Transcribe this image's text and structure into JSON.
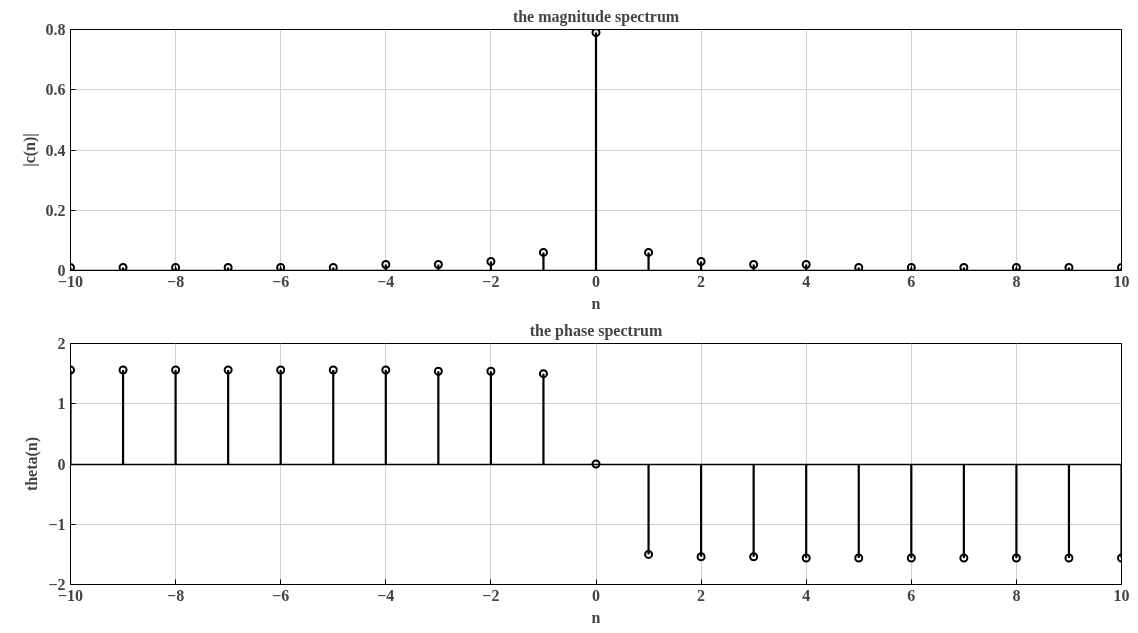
{
  "chart_data": [
    {
      "type": "lollipop",
      "title": "the magnitude spectrum",
      "xlabel": "n",
      "ylabel": "|c(n)|",
      "x": [
        -10,
        -9,
        -8,
        -7,
        -6,
        -5,
        -4,
        -3,
        -2,
        -1,
        0,
        1,
        2,
        3,
        4,
        5,
        6,
        7,
        8,
        9,
        10
      ],
      "values": [
        0.01,
        0.01,
        0.01,
        0.01,
        0.01,
        0.01,
        0.02,
        0.02,
        0.03,
        0.06,
        0.79,
        0.06,
        0.03,
        0.02,
        0.02,
        0.01,
        0.01,
        0.01,
        0.01,
        0.01,
        0.01
      ],
      "color": "#000000",
      "marker": "circle",
      "xlim": [
        -10,
        10
      ],
      "ylim": [
        0,
        0.8
      ],
      "xticks": [
        -10,
        -8,
        -6,
        -4,
        -2,
        0,
        2,
        4,
        6,
        8,
        10
      ],
      "yticks": [
        0,
        0.2,
        0.4,
        0.6,
        0.8
      ],
      "grid": true
    },
    {
      "type": "lollipop",
      "title": "the phase spectrum",
      "xlabel": "n",
      "ylabel": "theta(n)",
      "x": [
        -10,
        -9,
        -8,
        -7,
        -6,
        -5,
        -4,
        -3,
        -2,
        -1,
        0,
        1,
        2,
        3,
        4,
        5,
        6,
        7,
        8,
        9,
        10
      ],
      "values": [
        1.56,
        1.56,
        1.56,
        1.56,
        1.56,
        1.56,
        1.56,
        1.54,
        1.54,
        1.5,
        0,
        -1.5,
        -1.54,
        -1.54,
        -1.56,
        -1.56,
        -1.56,
        -1.56,
        -1.56,
        -1.56,
        -1.56
      ],
      "color": "#000000",
      "marker": "circle",
      "xlim": [
        -10,
        10
      ],
      "ylim": [
        -2,
        2
      ],
      "xticks": [
        -10,
        -8,
        -6,
        -4,
        -2,
        0,
        2,
        4,
        6,
        8,
        10
      ],
      "yticks": [
        -2,
        -1,
        0,
        1,
        2
      ],
      "grid": true
    }
  ]
}
